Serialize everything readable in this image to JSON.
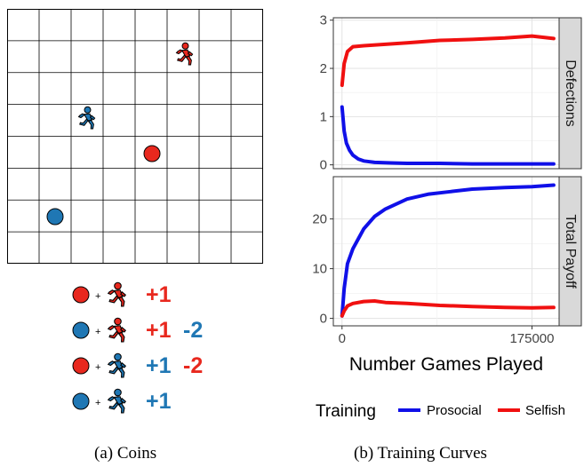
{
  "captions": {
    "left": "(a) Coins",
    "right": "(b) Training Curves"
  },
  "colors": {
    "red": "#e8281e",
    "blue": "#1f77b4",
    "prosocial": "#1010e8",
    "selfish": "#f01010"
  },
  "coin_game": {
    "grid_rows": 8,
    "grid_cols": 8,
    "icons": [
      "red-runner-icon",
      "blue-runner-icon",
      "red-coin-icon",
      "blue-coin-icon"
    ]
  },
  "payoff_rules": [
    {
      "coin": "red",
      "agent": "red",
      "plus": "+",
      "values": [
        {
          "text": "+1",
          "color": "red"
        }
      ]
    },
    {
      "coin": "blue",
      "agent": "red",
      "plus": "+",
      "values": [
        {
          "text": "+1",
          "color": "red"
        },
        {
          "text": "-2",
          "color": "blue"
        }
      ]
    },
    {
      "coin": "red",
      "agent": "blue",
      "plus": "+",
      "values": [
        {
          "text": "+1",
          "color": "blue"
        },
        {
          "text": "-2",
          "color": "red"
        }
      ]
    },
    {
      "coin": "blue",
      "agent": "blue",
      "plus": "+",
      "values": [
        {
          "text": "+1",
          "color": "blue"
        }
      ]
    }
  ],
  "chart_data": {
    "type": "line",
    "xlabel": "Number Games Played",
    "x_ticks": [
      0,
      175000
    ],
    "x_tick_labels": [
      "0",
      "175000"
    ],
    "xlim": [
      -8000,
      200000
    ],
    "legend": {
      "title": "Training",
      "placement": "bottom",
      "entries": [
        "Prosocial",
        "Selfish"
      ]
    },
    "grid": true,
    "facets": [
      {
        "strip": "Defections",
        "ylim": [
          -0.08,
          3.05
        ],
        "y_ticks": [
          0,
          1,
          2,
          3
        ],
        "series": [
          {
            "name": "Prosocial",
            "x": [
              0,
              2000,
              4000,
              7000,
              10000,
              15000,
              20000,
              30000,
              45000,
              60000,
              90000,
              120000,
              150000,
              175000,
              195000
            ],
            "values": [
              1.2,
              0.7,
              0.45,
              0.3,
              0.2,
              0.12,
              0.08,
              0.05,
              0.04,
              0.03,
              0.03,
              0.02,
              0.02,
              0.02,
              0.02
            ]
          },
          {
            "name": "Selfish",
            "x": [
              0,
              2000,
              5000,
              10000,
              20000,
              40000,
              60000,
              90000,
              120000,
              150000,
              175000,
              195000
            ],
            "values": [
              1.65,
              2.1,
              2.35,
              2.45,
              2.47,
              2.5,
              2.53,
              2.58,
              2.6,
              2.63,
              2.67,
              2.62
            ]
          }
        ]
      },
      {
        "strip": "Total Payoff",
        "ylim": [
          -1.5,
          28.5
        ],
        "y_ticks": [
          0,
          10,
          20
        ],
        "series": [
          {
            "name": "Prosocial",
            "x": [
              0,
              2000,
              5000,
              10000,
              15000,
              20000,
              30000,
              40000,
              60000,
              80000,
              100000,
              120000,
              150000,
              175000,
              195000
            ],
            "values": [
              0.5,
              6,
              11,
              14,
              16,
              18,
              20.5,
              22,
              24,
              25,
              25.5,
              26,
              26.3,
              26.5,
              26.8
            ]
          },
          {
            "name": "Selfish",
            "x": [
              0,
              2000,
              5000,
              10000,
              20000,
              30000,
              40000,
              60000,
              90000,
              120000,
              150000,
              175000,
              195000
            ],
            "values": [
              0.5,
              1.5,
              2.5,
              3.0,
              3.4,
              3.5,
              3.2,
              3.0,
              2.6,
              2.4,
              2.2,
              2.1,
              2.2
            ]
          }
        ]
      }
    ]
  }
}
